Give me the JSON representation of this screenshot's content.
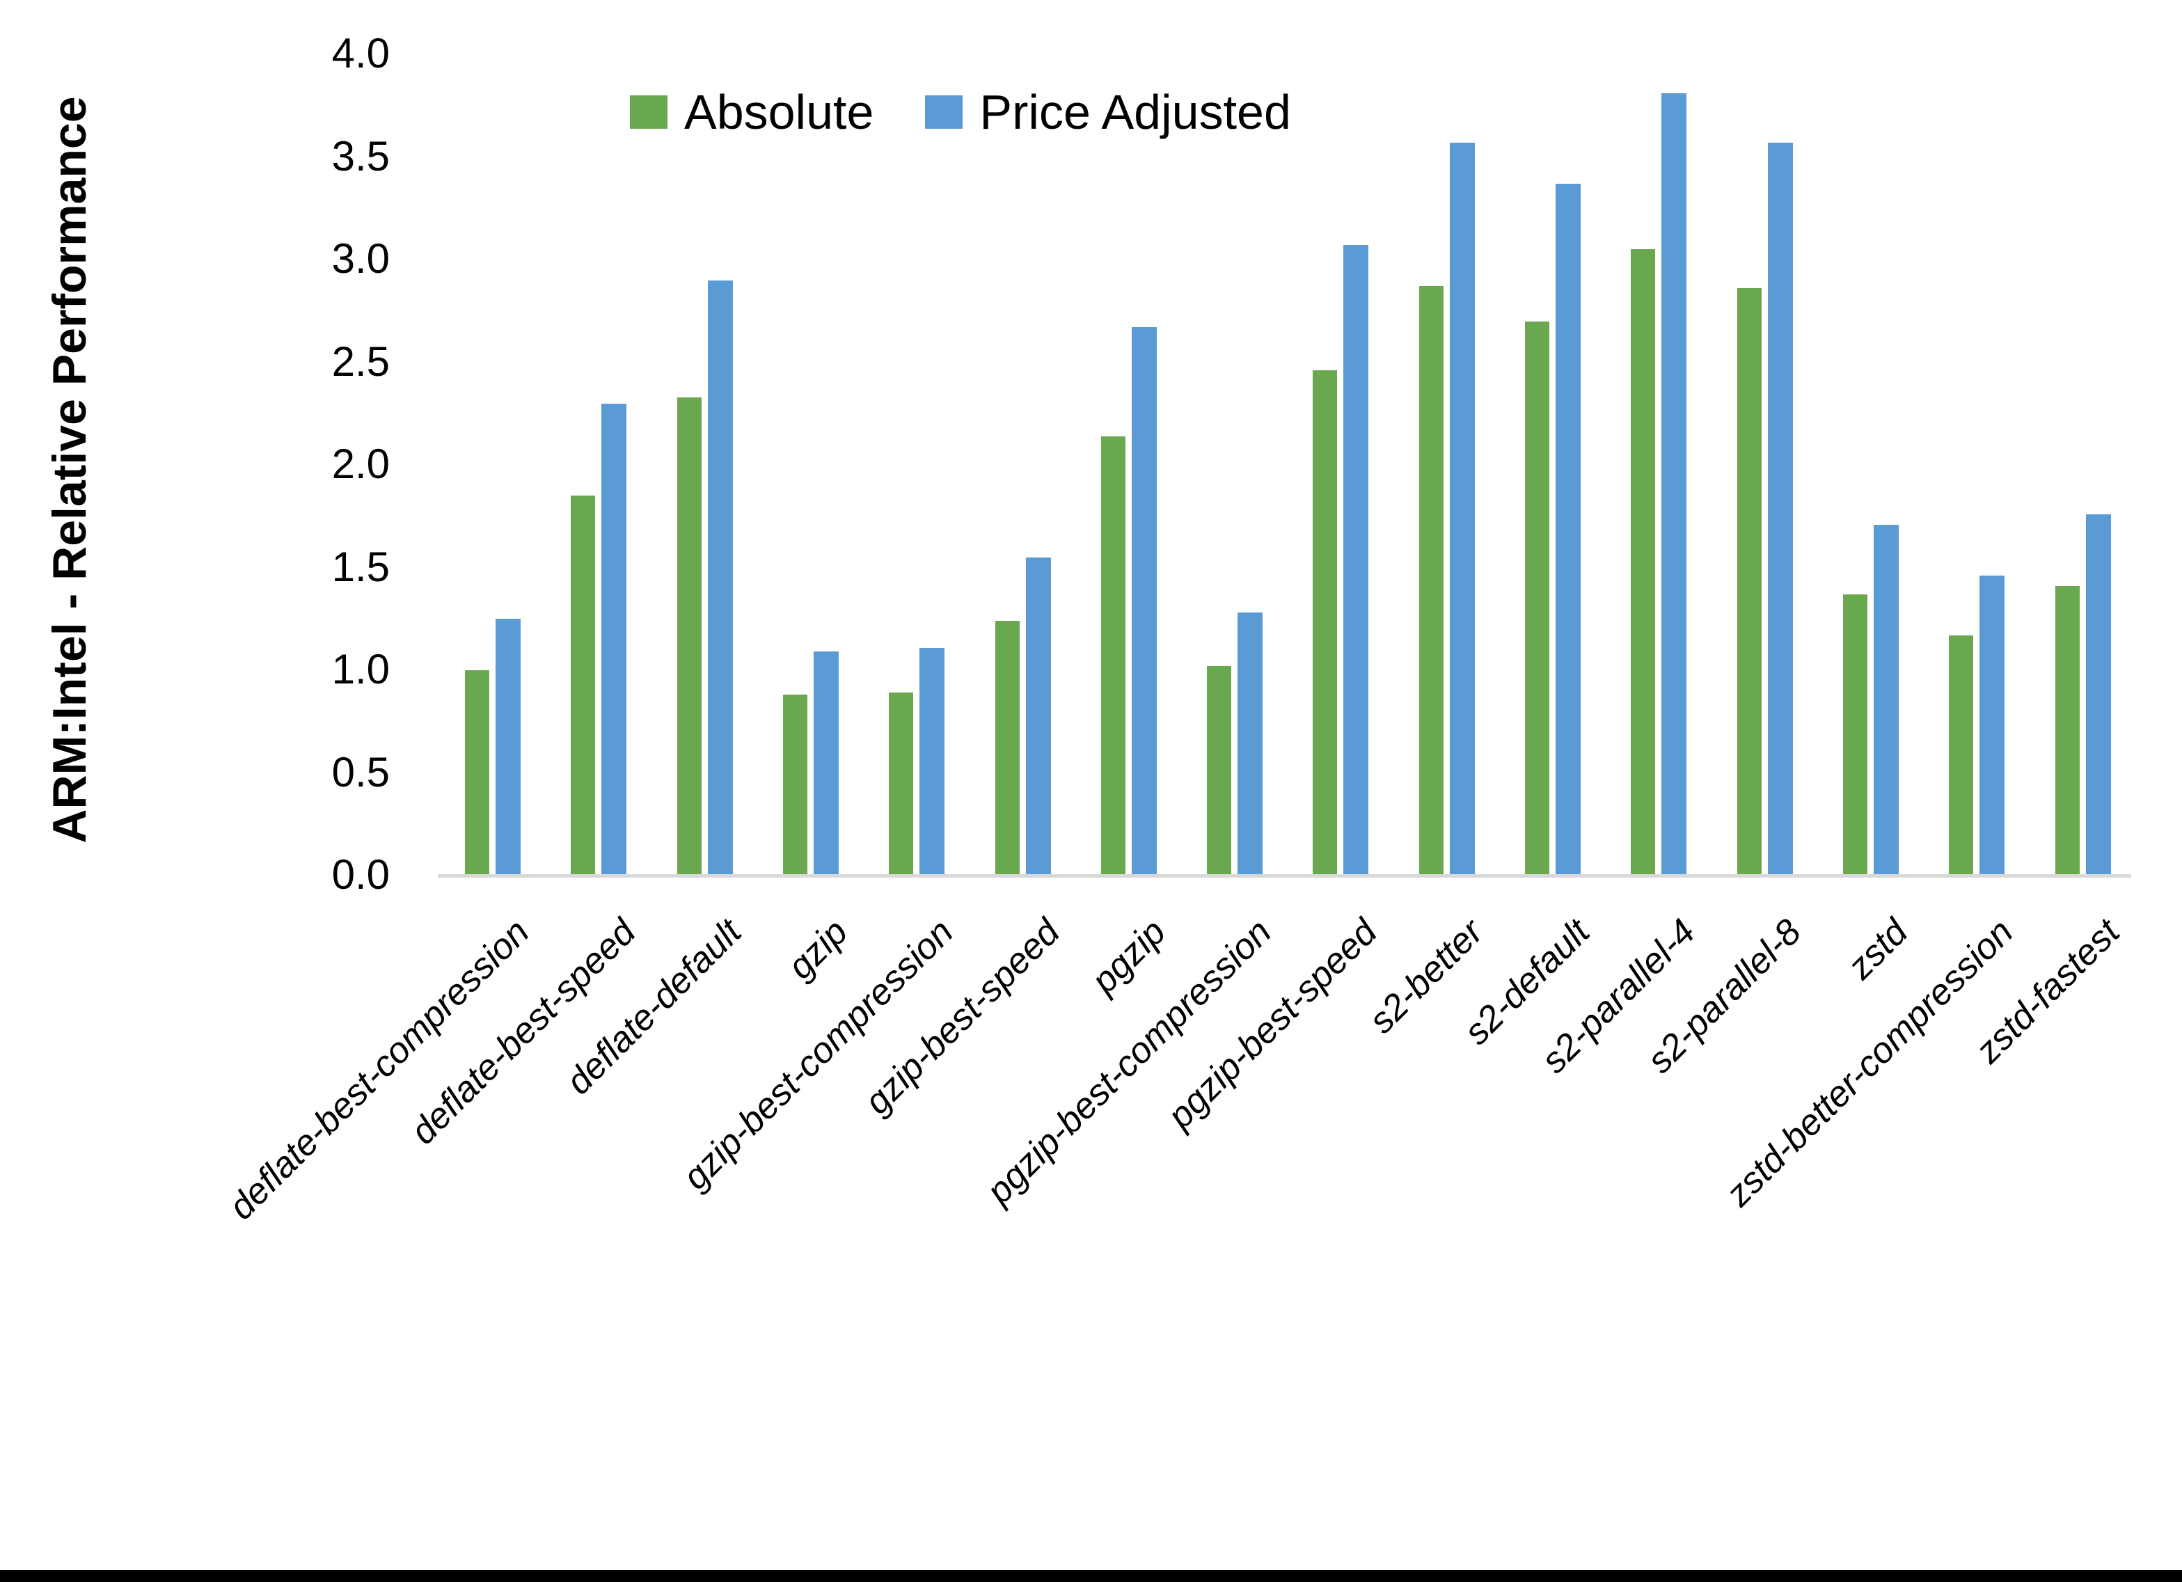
{
  "figure": {
    "background": "#FFFFFF",
    "bottom_border_color": "#000000",
    "axis_line_color": "#D9D9D9"
  },
  "legend": {
    "absolute_label": "Absolute",
    "price_adjusted_label": "Price Adjusted"
  },
  "chart_data": {
    "type": "bar",
    "title": "",
    "xlabel": "",
    "ylabel": "ARM:Intel - Relative Performance",
    "ylim": [
      0.0,
      4.0
    ],
    "ytick_step": 0.5,
    "ytick_labels": [
      "4.0",
      "3.5",
      "3.0",
      "2.5",
      "2.0",
      "1.5",
      "1.0",
      "0.5",
      "0.0"
    ],
    "grid": false,
    "legend_position": "top-center",
    "categories": [
      "deflate-best-compression",
      "deflate-best-speed",
      "deflate-default",
      "gzip",
      "gzip-best-compression",
      "gzip-best-speed",
      "pgzip",
      "pgzip-best-compression",
      "pgzip-best-speed",
      "s2-better",
      "s2-default",
      "s2-parallel-4",
      "s2-parallel-8",
      "zstd",
      "zstd-better-compression",
      "zstd-fastest"
    ],
    "series": [
      {
        "name": "Absolute",
        "color": "#6AA84F",
        "values": [
          1.0,
          1.85,
          2.33,
          0.88,
          0.89,
          1.24,
          2.14,
          1.02,
          2.46,
          2.87,
          2.7,
          3.05,
          2.86,
          1.37,
          1.17,
          1.41
        ]
      },
      {
        "name": "Price Adjusted",
        "color": "#5B9BD5",
        "values": [
          1.25,
          2.3,
          2.9,
          1.09,
          1.11,
          1.55,
          2.67,
          1.28,
          3.07,
          3.57,
          3.37,
          3.81,
          3.57,
          1.71,
          1.46,
          1.76
        ]
      }
    ]
  }
}
